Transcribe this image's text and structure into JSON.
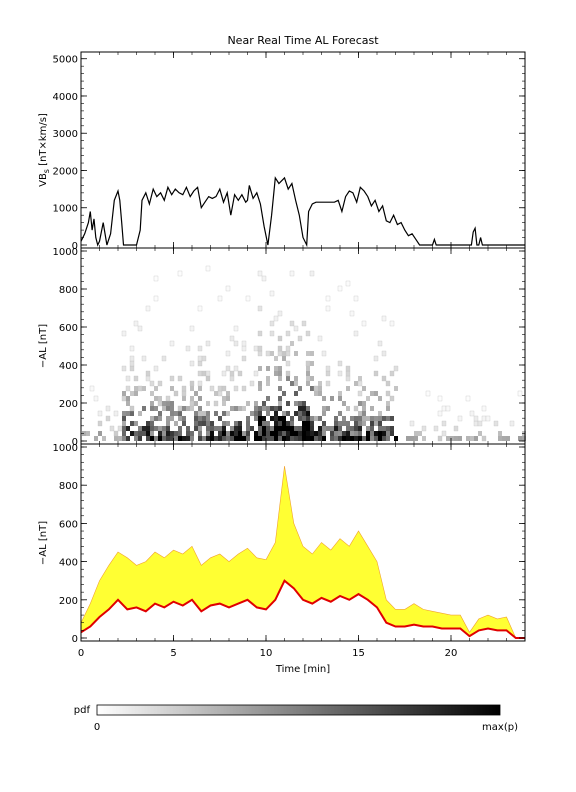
{
  "chart_data": [
    {
      "type": "line",
      "title": "Near Real Time AL Forecast",
      "ylabel": "VBs [nT×km/s]",
      "ylabel_main": "VB",
      "ylabel_sub": "s",
      "ylabel_rest": " [nT×km/s]",
      "xlim": [
        0,
        24
      ],
      "ylim": [
        0,
        5100
      ],
      "yticks": [
        0,
        1000,
        2000,
        3000,
        4000,
        5000
      ],
      "series": [
        {
          "color": "#000000",
          "x": [
            0,
            0.2,
            0.4,
            0.5,
            0.6,
            0.7,
            0.8,
            0.9,
            1.0,
            1.2,
            1.4,
            1.6,
            1.8,
            2.0,
            2.1,
            2.2,
            2.3,
            2.4,
            2.5,
            2.6,
            2.8,
            3.0,
            3.2,
            3.3,
            3.5,
            3.7,
            3.9,
            4.1,
            4.3,
            4.5,
            4.7,
            4.9,
            5.1,
            5.3,
            5.5,
            5.7,
            5.9,
            6.1,
            6.3,
            6.5,
            6.7,
            6.9,
            7.1,
            7.3,
            7.5,
            7.7,
            7.9,
            8.1,
            8.3,
            8.5,
            8.7,
            8.9,
            9.0,
            9.1,
            9.3,
            9.5,
            9.7,
            9.9,
            10.1,
            10.3,
            10.5,
            10.7,
            10.9,
            11.0,
            11.2,
            11.4,
            11.6,
            11.8,
            12.0,
            12.2,
            12.3,
            12.5,
            12.7,
            12.9,
            13.1,
            13.3,
            13.5,
            13.7,
            13.9,
            14.1,
            14.3,
            14.5,
            14.7,
            14.9,
            15.1,
            15.3,
            15.5,
            15.7,
            15.9,
            16.1,
            16.3,
            16.5,
            16.7,
            16.9,
            17.1,
            17.3,
            17.5,
            17.7,
            17.9,
            18.1,
            18.3,
            18.5,
            18.7,
            18.9,
            19.0,
            19.1,
            19.2,
            19.3,
            19.5,
            19.7,
            19.9,
            20.1,
            20.3,
            20.5,
            20.7,
            20.9,
            21.0,
            21.1,
            21.2,
            21.3,
            21.4,
            21.5,
            21.6,
            21.7,
            21.9,
            22.1,
            22.3,
            22.5,
            22.7,
            22.9,
            23.1,
            23.3,
            23.5,
            23.7,
            24.0
          ],
          "y": [
            100,
            300,
            600,
            900,
            400,
            700,
            200,
            0,
            100,
            600,
            0,
            300,
            1200,
            1450,
            1200,
            600,
            0,
            0,
            0,
            0,
            0,
            0,
            400,
            1200,
            1400,
            1100,
            1500,
            1300,
            1400,
            1200,
            1550,
            1350,
            1500,
            1400,
            1350,
            1550,
            1300,
            1450,
            1550,
            1000,
            1150,
            1300,
            1250,
            1300,
            1500,
            1150,
            1400,
            800,
            1350,
            1200,
            1350,
            1150,
            1200,
            1600,
            1250,
            1400,
            1100,
            500,
            0,
            800,
            1800,
            1650,
            1750,
            1800,
            1500,
            1650,
            1200,
            800,
            200,
            0,
            900,
            1100,
            1150,
            1150,
            1150,
            1150,
            1150,
            1150,
            1200,
            900,
            1300,
            1450,
            1400,
            1150,
            1550,
            1450,
            1300,
            1050,
            1200,
            900,
            1050,
            650,
            600,
            800,
            550,
            600,
            400,
            250,
            300,
            150,
            0,
            0,
            0,
            0,
            0,
            150,
            0,
            0,
            0,
            0,
            0,
            0,
            0,
            0,
            0,
            0,
            0,
            0,
            350,
            450,
            0,
            0,
            200,
            0,
            0,
            0,
            0,
            0,
            0,
            0,
            0,
            0,
            0,
            0,
            0
          ]
        }
      ]
    },
    {
      "type": "heatmap",
      "ylabel": "−AL [nT]",
      "xlim": [
        0,
        24
      ],
      "ylim": [
        0,
        1000
      ],
      "yticks": [
        0,
        200,
        400,
        600,
        800,
        1000
      ],
      "description_hidden": true
    },
    {
      "type": "area",
      "ylabel": "−AL [nT]",
      "xlabel": "Time [min]",
      "xlim": [
        0,
        24
      ],
      "ylim": [
        0,
        1000
      ],
      "xticks": [
        0,
        5,
        10,
        15,
        20
      ],
      "yticks": [
        0,
        200,
        400,
        600,
        800,
        1000
      ],
      "series": [
        {
          "color": "#e00000",
          "x": [
            0,
            0.5,
            1,
            1.5,
            2,
            2.5,
            3,
            3.5,
            4,
            4.5,
            5,
            5.5,
            6,
            6.5,
            7,
            7.5,
            8,
            8.5,
            9,
            9.5,
            10,
            10.5,
            11,
            11.5,
            12,
            12.5,
            13,
            13.5,
            14,
            14.5,
            15,
            15.5,
            16,
            16.5,
            17,
            17.5,
            18,
            18.5,
            19,
            19.5,
            20,
            20.5,
            21,
            21.5,
            22,
            22.5,
            23,
            23.5,
            24
          ],
          "y": [
            30,
            60,
            110,
            150,
            200,
            150,
            160,
            140,
            180,
            160,
            190,
            170,
            200,
            140,
            170,
            180,
            160,
            180,
            200,
            160,
            150,
            200,
            300,
            260,
            200,
            180,
            210,
            190,
            220,
            200,
            230,
            200,
            160,
            80,
            60,
            60,
            70,
            60,
            60,
            50,
            50,
            50,
            10,
            40,
            50,
            40,
            40,
            0,
            0
          ]
        },
        {
          "color": "#ffff33",
          "x": [
            0,
            0.5,
            1,
            1.5,
            2,
            2.5,
            3,
            3.5,
            4,
            4.5,
            5,
            5.5,
            6,
            6.5,
            7,
            7.5,
            8,
            8.5,
            9,
            9.5,
            10,
            10.5,
            11,
            11.5,
            12,
            12.5,
            13,
            13.5,
            14,
            14.5,
            15,
            15.5,
            16,
            16.5,
            17,
            17.5,
            18,
            18.5,
            19,
            19.5,
            20,
            20.5,
            21,
            21.5,
            22,
            22.5,
            23,
            23.5,
            24
          ],
          "y": [
            80,
            180,
            300,
            380,
            450,
            420,
            380,
            400,
            450,
            420,
            460,
            440,
            480,
            380,
            420,
            440,
            400,
            440,
            470,
            420,
            410,
            500,
            900,
            600,
            480,
            440,
            500,
            460,
            520,
            480,
            560,
            480,
            400,
            200,
            150,
            150,
            180,
            150,
            140,
            130,
            120,
            120,
            30,
            100,
            120,
            100,
            110,
            0,
            0
          ]
        }
      ]
    },
    {
      "type": "colorbar",
      "label": "pdf",
      "min_label": "0",
      "max_label": "max(p)"
    }
  ]
}
